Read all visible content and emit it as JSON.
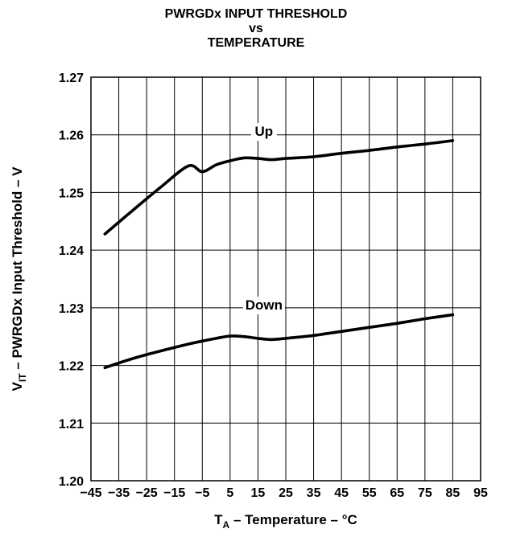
{
  "chart_data": {
    "type": "line",
    "title_lines": [
      "PWRGDx INPUT THRESHOLD",
      "vs",
      "TEMPERATURE"
    ],
    "xlabel": {
      "main": "T",
      "sub": "A",
      "rest": " – Temperature – °C"
    },
    "ylabel": {
      "main": "V",
      "sub": "IT",
      "rest": " – PWRGDx Input Threshold – V"
    },
    "xlim": [
      -45,
      95
    ],
    "ylim": [
      1.2,
      1.27
    ],
    "x_ticks": [
      -45,
      -35,
      -25,
      -15,
      -5,
      5,
      15,
      25,
      35,
      45,
      55,
      65,
      75,
      85,
      95
    ],
    "x_tick_labels": [
      "−45",
      "−35",
      "−25",
      "−15",
      "−5",
      "5",
      "15",
      "25",
      "35",
      "45",
      "55",
      "65",
      "75",
      "85",
      "95"
    ],
    "y_ticks": [
      1.2,
      1.21,
      1.22,
      1.23,
      1.24,
      1.25,
      1.26,
      1.27
    ],
    "y_tick_labels": [
      "1.20",
      "1.21",
      "1.22",
      "1.23",
      "1.24",
      "1.25",
      "1.26",
      "1.27"
    ],
    "grid": true,
    "series": [
      {
        "name": "Up",
        "x": [
          -40,
          -30,
          -20,
          -10,
          -5,
          0,
          5,
          10,
          15,
          20,
          25,
          35,
          45,
          55,
          65,
          75,
          85
        ],
        "y": [
          1.2428,
          1.2469,
          1.2509,
          1.2546,
          1.2536,
          1.2548,
          1.2555,
          1.256,
          1.2559,
          1.2557,
          1.2559,
          1.2562,
          1.2568,
          1.2573,
          1.2579,
          1.2584,
          1.259
        ],
        "label_at": [
          5,
          1.2598
        ]
      },
      {
        "name": "Down",
        "x": [
          -40,
          -30,
          -20,
          -10,
          0,
          5,
          10,
          15,
          20,
          25,
          35,
          45,
          55,
          65,
          75,
          85
        ],
        "y": [
          1.2196,
          1.2212,
          1.2225,
          1.2237,
          1.2247,
          1.2251,
          1.225,
          1.2247,
          1.2245,
          1.2247,
          1.2252,
          1.2259,
          1.2266,
          1.2273,
          1.2281,
          1.2288
        ],
        "label_at": [
          5,
          1.2297
        ]
      }
    ]
  }
}
